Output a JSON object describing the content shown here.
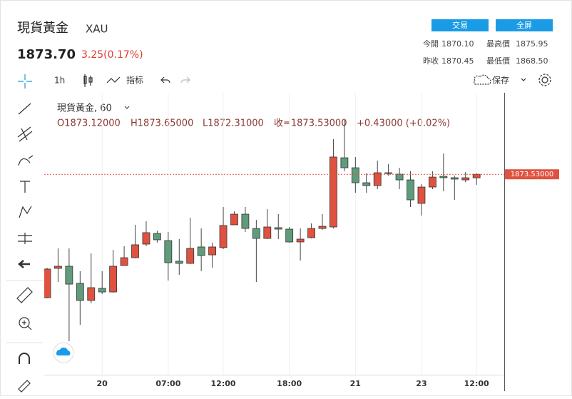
{
  "header": {
    "title": "現貨黃金",
    "symbol": "XAU",
    "price": "1873.70",
    "change": "3.25(0.17%)",
    "buttons": [
      "交易",
      "全屏"
    ],
    "stats": [
      [
        "今開",
        "1870.10",
        "最高價",
        "1875.95"
      ],
      [
        "昨收",
        "1870.45",
        "最低價",
        "1868.50"
      ]
    ]
  },
  "toolbar": {
    "interval": "1h",
    "indicators": "指标",
    "save": "保存"
  },
  "chart_data": {
    "type": "candlestick",
    "legend_title": "現貨黃金, 60",
    "ohlc_legend": [
      "O1873.12000",
      "H1873.65000",
      "L1872.31000",
      "收=1873.53000",
      "+0.43000 (+0.02%)"
    ],
    "categories": [
      null,
      null,
      null,
      null,
      null,
      "20",
      null,
      null,
      null,
      null,
      null,
      "07:00",
      null,
      null,
      null,
      null,
      "12:00",
      null,
      null,
      null,
      null,
      null,
      "18:00",
      null,
      null,
      null,
      null,
      null,
      "21",
      null,
      null,
      null,
      null,
      null,
      "23",
      null,
      null,
      null,
      null,
      "12:00"
    ],
    "open": [
      1859.2,
      1862.6,
      1862.85,
      1860.86,
      1858.87,
      1860.28,
      1859.86,
      1862.93,
      1863.84,
      1865.42,
      1866.66,
      1865.83,
      1863.43,
      1863.18,
      1865.09,
      1864.17,
      1865.01,
      1867.66,
      1868.9,
      1867.24,
      1866.08,
      1867.33,
      1867.16,
      1865.67,
      1866.17,
      1867.24,
      1867.41,
      1875.45,
      1874.29,
      1872.55,
      1872.22,
      1873.71,
      1873.55,
      1872.88,
      1870.15,
      1872.05,
      1873.3,
      1873.13,
      1872.88,
      1873.12
    ],
    "high": [
      1862.68,
      1864.92,
      1864.92,
      1862.27,
      1864.34,
      1862.27,
      1864.76,
      1865.17,
      1867.66,
      1868.07,
      1866.99,
      1866.83,
      1866.0,
      1868.49,
      1867.24,
      1865.59,
      1869.73,
      1869.23,
      1869.73,
      1868.24,
      1869.48,
      1868.9,
      1867.41,
      1867.24,
      1867.82,
      1868.9,
      1877.61,
      1879.85,
      1875.54,
      1873.63,
      1875.12,
      1874.71,
      1874.29,
      1873.88,
      1872.39,
      1873.88,
      1875.95,
      1873.38,
      1873.79,
      1873.65
    ],
    "low": [
      1859.12,
      1861.02,
      1854.14,
      1856.05,
      1858.54,
      1859.61,
      1859.78,
      1862.93,
      1863.76,
      1865.17,
      1865.59,
      1861.19,
      1861.85,
      1863.1,
      1862.27,
      1862.68,
      1864.84,
      1867.66,
      1866.83,
      1861.02,
      1866.0,
      1866.0,
      1865.59,
      1863.51,
      1866.08,
      1867.08,
      1867.24,
      1873.88,
      1871.39,
      1871.39,
      1871.8,
      1873.38,
      1871.8,
      1869.73,
      1868.74,
      1871.8,
      1871.56,
      1870.56,
      1872.63,
      1872.31
    ],
    "close": [
      1862.52,
      1862.85,
      1860.77,
      1858.87,
      1860.36,
      1859.86,
      1862.85,
      1863.84,
      1865.34,
      1866.75,
      1865.92,
      1863.26,
      1863.18,
      1864.92,
      1864.09,
      1865.09,
      1867.58,
      1868.9,
      1867.24,
      1866.08,
      1867.41,
      1867.16,
      1865.67,
      1866.0,
      1867.24,
      1867.49,
      1875.54,
      1874.29,
      1872.55,
      1872.22,
      1873.71,
      1873.63,
      1872.88,
      1870.56,
      1872.05,
      1873.21,
      1873.13,
      1872.97,
      1873.13,
      1873.53
    ],
    "up_color": "#e05240",
    "down_color": "#5e9c7c",
    "ylim": [
      1849,
      1883
    ],
    "last_price": {
      "value": 1873.53,
      "label": "1873.53000"
    },
    "grid": true
  }
}
